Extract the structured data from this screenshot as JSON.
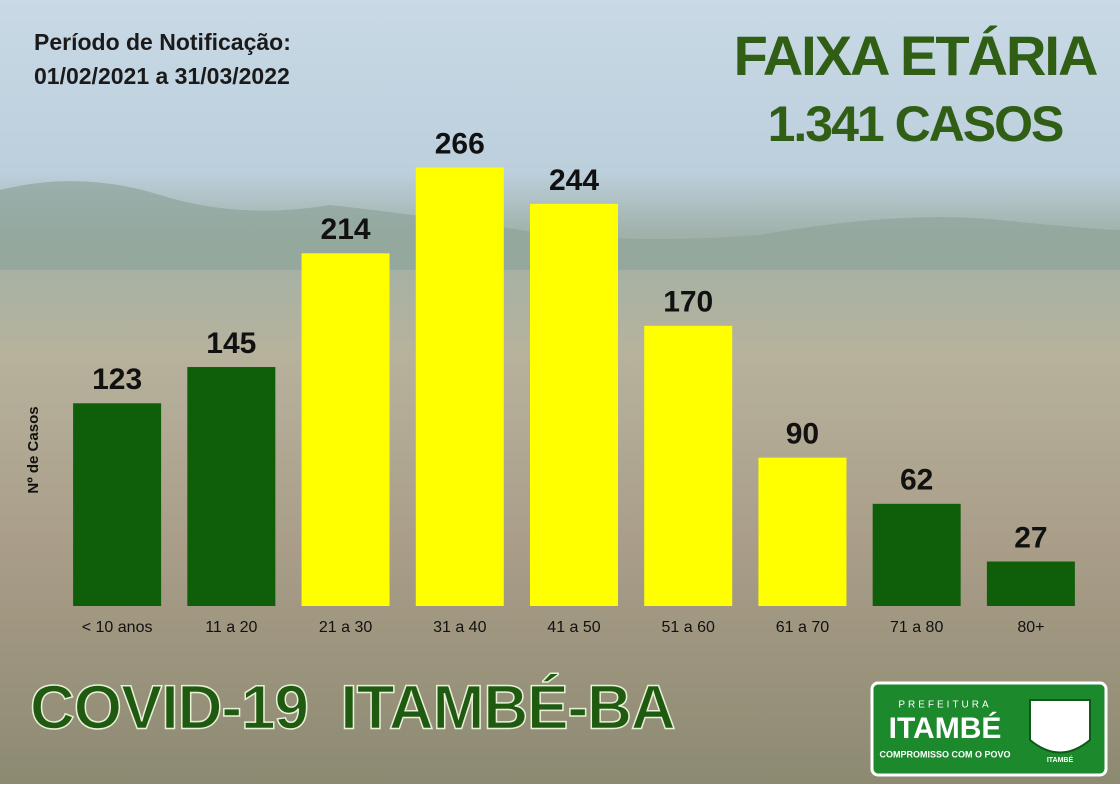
{
  "chart_data": {
    "type": "bar",
    "title": "FAIXA ETÁRIA",
    "subtitle": "1.341 CASOS",
    "period_label": "Período de Notificação:",
    "period": "01/02/2021 a 31/03/2022",
    "y_label": "Nº de Casos",
    "footer": "COVID-19  ITAMBÉ-BA",
    "logo": {
      "top": "PREFEITURA",
      "name": "ITAMBÉ",
      "motto": "COMPROMISSO COM O POVO",
      "crest": "ITAMBÉ"
    },
    "categories": [
      "< 10 anos",
      "11 a 20",
      "21 a 30",
      "31 a 40",
      "41 a 50",
      "51 a 60",
      "61 a 70",
      "71 a 80",
      "80+"
    ],
    "values": [
      123,
      145,
      214,
      266,
      244,
      170,
      90,
      62,
      27
    ],
    "colors": [
      "#0f5e0a",
      "#0f5e0a",
      "#ffff00",
      "#ffff00",
      "#ffff00",
      "#ffff00",
      "#ffff00",
      "#0f5e0a",
      "#0f5e0a"
    ],
    "ylim": [
      0,
      270
    ]
  }
}
